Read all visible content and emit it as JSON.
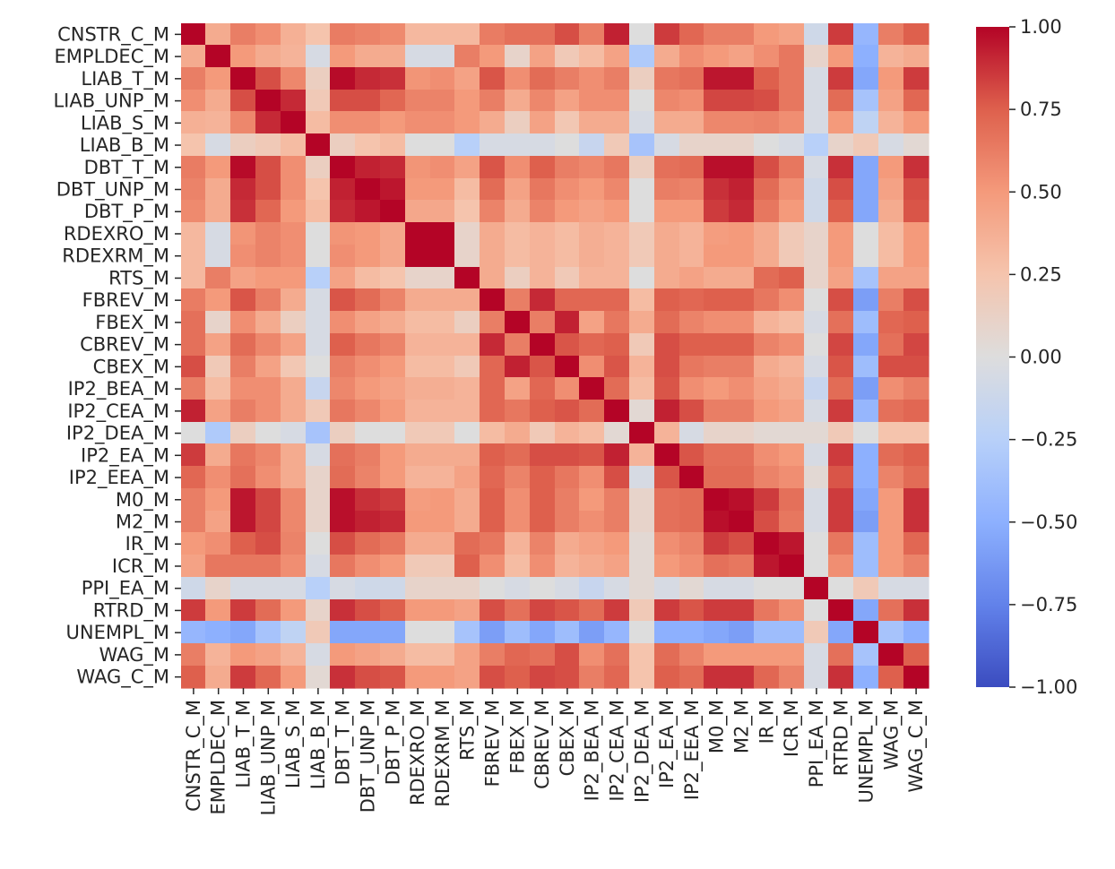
{
  "chart_data": {
    "type": "heatmap",
    "title": "",
    "xlabel": "",
    "ylabel": "",
    "colormap": "coolwarm",
    "vmin": -1.0,
    "vmax": 1.0,
    "colorbar_ticks": [
      1.0,
      0.75,
      0.5,
      0.25,
      0.0,
      -0.25,
      -0.5,
      -0.75,
      -1.0
    ],
    "colorbar_tick_labels": [
      "1.00",
      "0.75",
      "0.50",
      "0.25",
      "0.00",
      "−0.25",
      "−0.50",
      "−0.75",
      "−1.00"
    ],
    "labels": [
      "CNSTR_C_M",
      "EMPLDEC_M",
      "LIAB_T_M",
      "LIAB_UNP_M",
      "LIAB_S_M",
      "LIAB_B_M",
      "DBT_T_M",
      "DBT_UNP_M",
      "DBT_P_M",
      "RDEXRO_M",
      "RDEXRM_M",
      "RTS_M",
      "FBREV_M",
      "FBEX_M",
      "CBREV_M",
      "CBEX_M",
      "IP2_BEA_M",
      "IP2_CEA_M",
      "IP2_DEA_M",
      "IP2_EA_M",
      "IP2_EEA_M",
      "M0_M",
      "M2_M",
      "IR_M",
      "ICR_M",
      "PPI_EA_M",
      "RTRD_M",
      "UNEMPL_M",
      "WAG_M",
      "WAG_C_M"
    ],
    "matrix": [
      [
        1.0,
        0.4,
        0.62,
        0.55,
        0.37,
        0.25,
        0.63,
        0.6,
        0.57,
        0.32,
        0.32,
        0.32,
        0.63,
        0.68,
        0.68,
        0.8,
        0.62,
        0.92,
        0.0,
        0.85,
        0.72,
        0.62,
        0.62,
        0.5,
        0.45,
        -0.1,
        0.85,
        -0.45,
        0.62,
        0.75
      ],
      [
        0.4,
        1.0,
        0.5,
        0.4,
        0.35,
        -0.05,
        0.5,
        0.4,
        0.4,
        -0.05,
        -0.05,
        0.62,
        0.5,
        0.1,
        0.45,
        0.2,
        0.3,
        0.45,
        -0.3,
        0.4,
        0.55,
        0.5,
        0.45,
        0.55,
        0.65,
        0.1,
        0.5,
        -0.5,
        0.35,
        0.4
      ],
      [
        0.62,
        0.5,
        1.0,
        0.8,
        0.58,
        0.15,
        0.98,
        0.9,
        0.88,
        0.52,
        0.55,
        0.45,
        0.78,
        0.55,
        0.7,
        0.62,
        0.55,
        0.62,
        0.15,
        0.65,
        0.68,
        0.95,
        0.95,
        0.75,
        0.65,
        -0.05,
        0.85,
        -0.55,
        0.5,
        0.85
      ],
      [
        0.55,
        0.4,
        0.8,
        1.0,
        0.9,
        0.2,
        0.8,
        0.8,
        0.72,
        0.6,
        0.6,
        0.5,
        0.62,
        0.4,
        0.58,
        0.45,
        0.55,
        0.55,
        0.0,
        0.58,
        0.55,
        0.82,
        0.82,
        0.8,
        0.65,
        -0.05,
        0.7,
        -0.35,
        0.45,
        0.72
      ],
      [
        0.37,
        0.35,
        0.58,
        0.9,
        1.0,
        0.3,
        0.55,
        0.55,
        0.5,
        0.55,
        0.55,
        0.5,
        0.4,
        0.15,
        0.45,
        0.22,
        0.4,
        0.4,
        -0.05,
        0.4,
        0.4,
        0.58,
        0.58,
        0.6,
        0.55,
        -0.05,
        0.5,
        -0.2,
        0.35,
        0.5
      ],
      [
        0.25,
        -0.05,
        0.15,
        0.2,
        0.3,
        1.0,
        0.15,
        0.25,
        0.3,
        0.0,
        0.0,
        -0.25,
        -0.05,
        -0.05,
        -0.05,
        0.0,
        -0.15,
        0.2,
        -0.35,
        -0.05,
        0.1,
        0.1,
        0.1,
        0.0,
        -0.05,
        -0.25,
        0.1,
        0.2,
        -0.05,
        0.05
      ],
      [
        0.63,
        0.5,
        0.98,
        0.8,
        0.55,
        0.15,
        1.0,
        0.92,
        0.9,
        0.52,
        0.55,
        0.45,
        0.78,
        0.55,
        0.75,
        0.62,
        0.58,
        0.65,
        0.15,
        0.68,
        0.7,
        0.97,
        0.97,
        0.8,
        0.65,
        -0.05,
        0.88,
        -0.55,
        0.5,
        0.88
      ],
      [
        0.6,
        0.4,
        0.9,
        0.8,
        0.55,
        0.25,
        0.92,
        1.0,
        0.95,
        0.5,
        0.5,
        0.3,
        0.7,
        0.45,
        0.65,
        0.55,
        0.5,
        0.58,
        0.0,
        0.62,
        0.6,
        0.88,
        0.92,
        0.7,
        0.55,
        -0.1,
        0.8,
        -0.55,
        0.45,
        0.8
      ],
      [
        0.57,
        0.4,
        0.88,
        0.72,
        0.5,
        0.3,
        0.9,
        0.95,
        1.0,
        0.42,
        0.42,
        0.25,
        0.6,
        0.4,
        0.6,
        0.5,
        0.45,
        0.5,
        0.0,
        0.5,
        0.5,
        0.85,
        0.9,
        0.65,
        0.5,
        -0.1,
        0.75,
        -0.55,
        0.4,
        0.78
      ],
      [
        0.32,
        -0.05,
        0.52,
        0.6,
        0.55,
        0.0,
        0.52,
        0.5,
        0.42,
        1.0,
        1.0,
        0.1,
        0.4,
        0.3,
        0.35,
        0.3,
        0.38,
        0.35,
        0.2,
        0.4,
        0.35,
        0.48,
        0.5,
        0.4,
        0.2,
        0.1,
        0.5,
        0.0,
        0.3,
        0.5
      ],
      [
        0.32,
        -0.05,
        0.55,
        0.6,
        0.55,
        0.0,
        0.55,
        0.5,
        0.42,
        1.0,
        1.0,
        0.1,
        0.4,
        0.3,
        0.35,
        0.3,
        0.38,
        0.35,
        0.2,
        0.4,
        0.35,
        0.5,
        0.5,
        0.4,
        0.2,
        0.1,
        0.5,
        0.0,
        0.3,
        0.5
      ],
      [
        0.32,
        0.62,
        0.45,
        0.5,
        0.5,
        -0.25,
        0.45,
        0.3,
        0.25,
        0.1,
        0.1,
        1.0,
        0.4,
        0.15,
        0.35,
        0.2,
        0.35,
        0.35,
        0.0,
        0.4,
        0.45,
        0.4,
        0.4,
        0.7,
        0.75,
        0.1,
        0.45,
        -0.35,
        0.45,
        0.45
      ],
      [
        0.63,
        0.5,
        0.78,
        0.62,
        0.4,
        -0.05,
        0.78,
        0.7,
        0.6,
        0.4,
        0.4,
        0.4,
        1.0,
        0.62,
        0.9,
        0.72,
        0.72,
        0.72,
        0.3,
        0.75,
        0.72,
        0.75,
        0.75,
        0.65,
        0.55,
        0.0,
        0.8,
        -0.6,
        0.62,
        0.8
      ],
      [
        0.68,
        0.1,
        0.55,
        0.4,
        0.15,
        -0.05,
        0.55,
        0.45,
        0.4,
        0.3,
        0.3,
        0.15,
        0.62,
        1.0,
        0.62,
        0.92,
        0.45,
        0.65,
        0.4,
        0.7,
        0.6,
        0.55,
        0.55,
        0.35,
        0.3,
        -0.05,
        0.68,
        -0.4,
        0.72,
        0.75
      ],
      [
        0.68,
        0.45,
        0.7,
        0.58,
        0.45,
        -0.05,
        0.75,
        0.65,
        0.6,
        0.35,
        0.35,
        0.35,
        0.9,
        0.62,
        1.0,
        0.78,
        0.72,
        0.75,
        0.2,
        0.8,
        0.75,
        0.75,
        0.75,
        0.6,
        0.55,
        0.0,
        0.82,
        -0.55,
        0.68,
        0.82
      ],
      [
        0.8,
        0.2,
        0.62,
        0.45,
        0.22,
        0.0,
        0.62,
        0.55,
        0.5,
        0.3,
        0.3,
        0.2,
        0.72,
        0.92,
        0.78,
        1.0,
        0.55,
        0.78,
        0.35,
        0.8,
        0.65,
        0.62,
        0.62,
        0.4,
        0.35,
        -0.05,
        0.78,
        -0.4,
        0.8,
        0.8
      ],
      [
        0.62,
        0.3,
        0.55,
        0.55,
        0.4,
        -0.15,
        0.58,
        0.5,
        0.45,
        0.38,
        0.38,
        0.35,
        0.72,
        0.45,
        0.72,
        0.55,
        1.0,
        0.7,
        0.3,
        0.78,
        0.55,
        0.5,
        0.55,
        0.45,
        0.4,
        -0.15,
        0.7,
        -0.6,
        0.55,
        0.62
      ],
      [
        0.92,
        0.45,
        0.62,
        0.55,
        0.4,
        0.2,
        0.65,
        0.58,
        0.5,
        0.35,
        0.35,
        0.35,
        0.72,
        0.65,
        0.75,
        0.78,
        0.7,
        1.0,
        0.05,
        0.92,
        0.8,
        0.62,
        0.62,
        0.5,
        0.45,
        -0.05,
        0.85,
        -0.45,
        0.68,
        0.72
      ],
      [
        0.0,
        -0.3,
        0.15,
        0.0,
        -0.05,
        -0.35,
        0.15,
        0.0,
        0.0,
        0.2,
        0.2,
        0.0,
        0.3,
        0.4,
        0.2,
        0.35,
        0.3,
        0.05,
        1.0,
        0.35,
        -0.05,
        0.1,
        0.1,
        0.05,
        0.05,
        0.05,
        0.2,
        0.0,
        0.25,
        0.25
      ],
      [
        0.85,
        0.4,
        0.65,
        0.58,
        0.4,
        -0.05,
        0.68,
        0.62,
        0.5,
        0.4,
        0.4,
        0.4,
        0.75,
        0.7,
        0.8,
        0.8,
        0.78,
        0.92,
        0.35,
        1.0,
        0.78,
        0.68,
        0.68,
        0.55,
        0.5,
        -0.05,
        0.85,
        -0.5,
        0.7,
        0.75
      ],
      [
        0.72,
        0.55,
        0.68,
        0.55,
        0.4,
        0.1,
        0.7,
        0.6,
        0.5,
        0.35,
        0.35,
        0.45,
        0.72,
        0.6,
        0.75,
        0.65,
        0.55,
        0.8,
        -0.05,
        0.78,
        1.0,
        0.7,
        0.7,
        0.6,
        0.55,
        0.05,
        0.78,
        -0.5,
        0.6,
        0.7
      ],
      [
        0.62,
        0.5,
        0.95,
        0.82,
        0.58,
        0.1,
        0.97,
        0.88,
        0.85,
        0.48,
        0.5,
        0.4,
        0.75,
        0.55,
        0.75,
        0.62,
        0.5,
        0.62,
        0.1,
        0.68,
        0.7,
        1.0,
        0.97,
        0.85,
        0.68,
        -0.05,
        0.85,
        -0.55,
        0.5,
        0.88
      ],
      [
        0.62,
        0.45,
        0.95,
        0.82,
        0.58,
        0.1,
        0.97,
        0.92,
        0.9,
        0.5,
        0.5,
        0.4,
        0.75,
        0.55,
        0.75,
        0.62,
        0.55,
        0.62,
        0.1,
        0.68,
        0.7,
        0.97,
        1.0,
        0.8,
        0.65,
        -0.05,
        0.85,
        -0.6,
        0.5,
        0.88
      ],
      [
        0.5,
        0.55,
        0.75,
        0.8,
        0.6,
        0.0,
        0.8,
        0.7,
        0.65,
        0.4,
        0.4,
        0.7,
        0.65,
        0.35,
        0.6,
        0.4,
        0.45,
        0.5,
        0.05,
        0.55,
        0.6,
        0.85,
        0.8,
        1.0,
        0.95,
        0.0,
        0.65,
        -0.4,
        0.5,
        0.72
      ],
      [
        0.45,
        0.65,
        0.65,
        0.65,
        0.55,
        -0.05,
        0.65,
        0.55,
        0.5,
        0.2,
        0.2,
        0.75,
        0.55,
        0.3,
        0.55,
        0.35,
        0.4,
        0.45,
        0.05,
        0.5,
        0.55,
        0.68,
        0.65,
        0.95,
        1.0,
        0.0,
        0.55,
        -0.4,
        0.5,
        0.6
      ],
      [
        -0.1,
        0.1,
        -0.05,
        -0.05,
        -0.05,
        -0.25,
        -0.05,
        -0.1,
        -0.1,
        0.1,
        0.1,
        0.1,
        0.0,
        -0.05,
        0.0,
        -0.05,
        -0.15,
        -0.05,
        0.05,
        -0.05,
        0.05,
        -0.05,
        -0.05,
        0.0,
        0.0,
        1.0,
        0.0,
        0.2,
        -0.05,
        -0.05
      ],
      [
        0.85,
        0.5,
        0.85,
        0.7,
        0.5,
        0.1,
        0.88,
        0.8,
        0.75,
        0.5,
        0.5,
        0.45,
        0.8,
        0.68,
        0.82,
        0.78,
        0.7,
        0.85,
        0.2,
        0.85,
        0.78,
        0.85,
        0.85,
        0.65,
        0.55,
        0.0,
        1.0,
        -0.55,
        0.68,
        0.88
      ],
      [
        -0.45,
        -0.5,
        -0.55,
        -0.35,
        -0.2,
        0.2,
        -0.55,
        -0.55,
        -0.55,
        0.0,
        0.0,
        -0.35,
        -0.6,
        -0.4,
        -0.55,
        -0.4,
        -0.6,
        -0.45,
        0.0,
        -0.5,
        -0.5,
        -0.55,
        -0.6,
        -0.4,
        -0.4,
        0.2,
        -0.55,
        1.0,
        -0.35,
        -0.5
      ],
      [
        0.62,
        0.35,
        0.5,
        0.45,
        0.35,
        -0.05,
        0.5,
        0.45,
        0.4,
        0.3,
        0.3,
        0.45,
        0.62,
        0.72,
        0.68,
        0.8,
        0.55,
        0.68,
        0.25,
        0.7,
        0.6,
        0.5,
        0.5,
        0.5,
        0.5,
        -0.05,
        0.68,
        -0.35,
        1.0,
        0.75
      ],
      [
        0.75,
        0.4,
        0.85,
        0.72,
        0.5,
        0.05,
        0.88,
        0.8,
        0.78,
        0.5,
        0.5,
        0.45,
        0.8,
        0.75,
        0.82,
        0.8,
        0.62,
        0.72,
        0.25,
        0.75,
        0.7,
        0.88,
        0.88,
        0.72,
        0.6,
        -0.05,
        0.88,
        -0.5,
        0.75,
        1.0
      ]
    ]
  }
}
